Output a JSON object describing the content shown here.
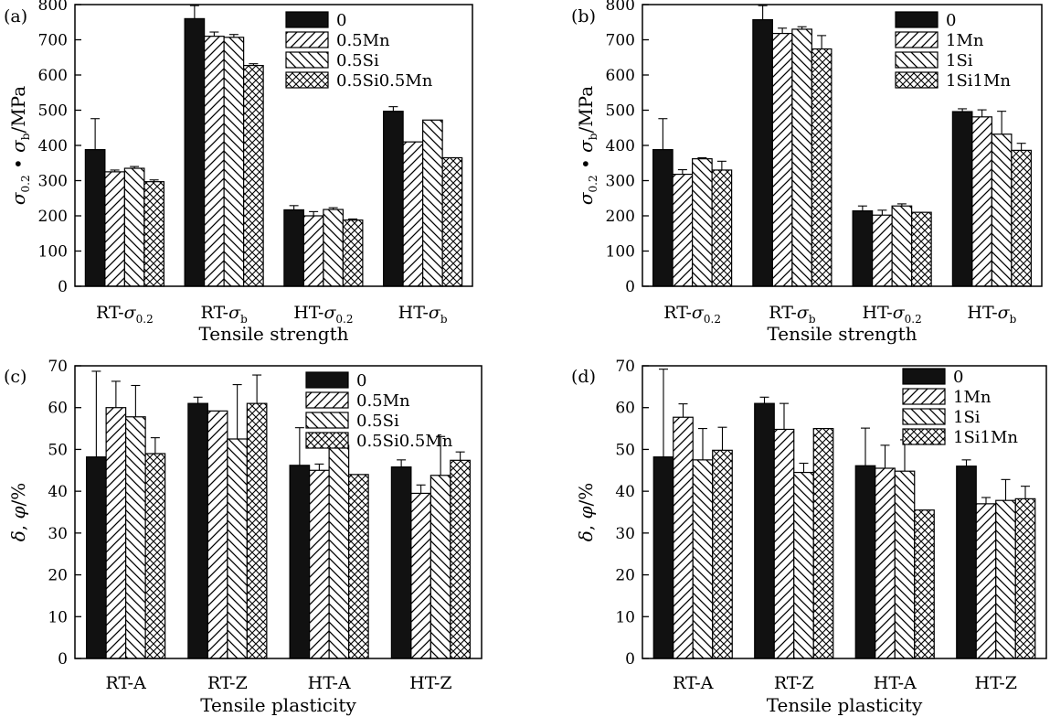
{
  "chart_data": [
    {
      "type": "bar",
      "panel_label": "(a)",
      "xlabel": "Tensile strength",
      "ylabel": "σ0.2 • σb/MPa",
      "ylim": [
        0,
        800
      ],
      "yticks": [
        0,
        100,
        200,
        300,
        400,
        500,
        600,
        700,
        800
      ],
      "legend_position": "top-right",
      "categories": [
        {
          "main": "RT-σ",
          "sub": "0.2"
        },
        {
          "main": "RT-σ",
          "sub": "b"
        },
        {
          "main": "HT-σ",
          "sub": "0.2"
        },
        {
          "main": "HT-σ",
          "sub": "b"
        }
      ],
      "series": [
        {
          "name": "0",
          "pattern": "solid",
          "values": [
            388,
            760,
            217,
            497
          ],
          "errors": [
            88,
            37,
            12,
            13
          ]
        },
        {
          "name": "0.5Mn",
          "pattern": "diag-up",
          "values": [
            325,
            710,
            200,
            410
          ],
          "errors": [
            5,
            12,
            12,
            0
          ]
        },
        {
          "name": "0.5Si",
          "pattern": "diag-down",
          "values": [
            335,
            707,
            218,
            472
          ],
          "errors": [
            5,
            8,
            5,
            0
          ]
        },
        {
          "name": "0.5Si0.5Mn",
          "pattern": "cross",
          "values": [
            297,
            627,
            188,
            365
          ],
          "errors": [
            5,
            5,
            3,
            0
          ]
        }
      ]
    },
    {
      "type": "bar",
      "panel_label": "(b)",
      "xlabel": "Tensile strength",
      "ylabel": "σ0.2 • σb/MPa",
      "ylim": [
        0,
        800
      ],
      "yticks": [
        0,
        100,
        200,
        300,
        400,
        500,
        600,
        700,
        800
      ],
      "legend_position": "top-right",
      "categories": [
        {
          "main": "RT-σ",
          "sub": "0.2"
        },
        {
          "main": "RT-σ",
          "sub": "b"
        },
        {
          "main": "HT-σ",
          "sub": "0.2"
        },
        {
          "main": "HT-σ",
          "sub": "b"
        }
      ],
      "series": [
        {
          "name": "0",
          "pattern": "solid",
          "values": [
            388,
            757,
            214,
            496
          ],
          "errors": [
            88,
            40,
            14,
            8
          ]
        },
        {
          "name": "1Mn",
          "pattern": "diag-up",
          "values": [
            318,
            718,
            202,
            481
          ],
          "errors": [
            13,
            15,
            14,
            20
          ]
        },
        {
          "name": "1Si",
          "pattern": "diag-down",
          "values": [
            362,
            730,
            228,
            432
          ],
          "errors": [
            3,
            7,
            6,
            65
          ]
        },
        {
          "name": "1Si1Mn",
          "pattern": "cross",
          "values": [
            330,
            674,
            210,
            386
          ],
          "errors": [
            25,
            38,
            0,
            20
          ]
        }
      ]
    },
    {
      "type": "bar",
      "panel_label": "(c)",
      "xlabel": "Tensile plasticity",
      "ylabel": "δ, φ/%",
      "ylim": [
        0,
        70
      ],
      "yticks": [
        0,
        10,
        20,
        30,
        40,
        50,
        60,
        70
      ],
      "legend_position": "top-right",
      "categories": [
        {
          "main": "RT-A",
          "sub": ""
        },
        {
          "main": "RT-Z",
          "sub": ""
        },
        {
          "main": "HT-A",
          "sub": ""
        },
        {
          "main": "HT-Z",
          "sub": ""
        }
      ],
      "series": [
        {
          "name": "0",
          "pattern": "solid",
          "values": [
            48.2,
            61.0,
            46.2,
            45.8
          ],
          "errors": [
            20.5,
            1.5,
            9.0,
            1.7
          ]
        },
        {
          "name": "0.5Mn",
          "pattern": "diag-up",
          "values": [
            60.0,
            59.2,
            45.0,
            39.5
          ],
          "errors": [
            6.3,
            0,
            1.5,
            2.0
          ]
        },
        {
          "name": "0.5Si",
          "pattern": "diag-down",
          "values": [
            57.8,
            52.5,
            51.0,
            43.8
          ],
          "errors": [
            7.5,
            13.0,
            1.5,
            9.3
          ]
        },
        {
          "name": "0.5Si0.5Mn",
          "pattern": "cross",
          "values": [
            49.0,
            61.0,
            44.0,
            47.4
          ],
          "errors": [
            3.8,
            6.8,
            0,
            2.0
          ]
        }
      ]
    },
    {
      "type": "bar",
      "panel_label": "(d)",
      "xlabel": "Tensile plasticity",
      "ylabel": "δ, φ/%",
      "ylim": [
        0,
        70
      ],
      "yticks": [
        0,
        10,
        20,
        30,
        40,
        50,
        60,
        70
      ],
      "legend_position": "top-right",
      "categories": [
        {
          "main": "RT-A",
          "sub": ""
        },
        {
          "main": "RT-Z",
          "sub": ""
        },
        {
          "main": "HT-A",
          "sub": ""
        },
        {
          "main": "HT-Z",
          "sub": ""
        }
      ],
      "series": [
        {
          "name": "0",
          "pattern": "solid",
          "values": [
            48.2,
            61.0,
            46.1,
            46.0
          ],
          "errors": [
            21.0,
            1.5,
            9.0,
            1.5
          ]
        },
        {
          "name": "1Mn",
          "pattern": "diag-up",
          "values": [
            57.7,
            54.8,
            45.5,
            37.0
          ],
          "errors": [
            3.2,
            6.2,
            5.5,
            1.5
          ]
        },
        {
          "name": "1Si",
          "pattern": "diag-down",
          "values": [
            47.5,
            44.5,
            44.8,
            37.8
          ],
          "errors": [
            7.5,
            2.2,
            7.5,
            5.0
          ]
        },
        {
          "name": "1Si1Mn",
          "pattern": "cross",
          "values": [
            49.8,
            55.0,
            35.5,
            38.2
          ],
          "errors": [
            5.5,
            0,
            0,
            3.0
          ]
        }
      ]
    }
  ]
}
